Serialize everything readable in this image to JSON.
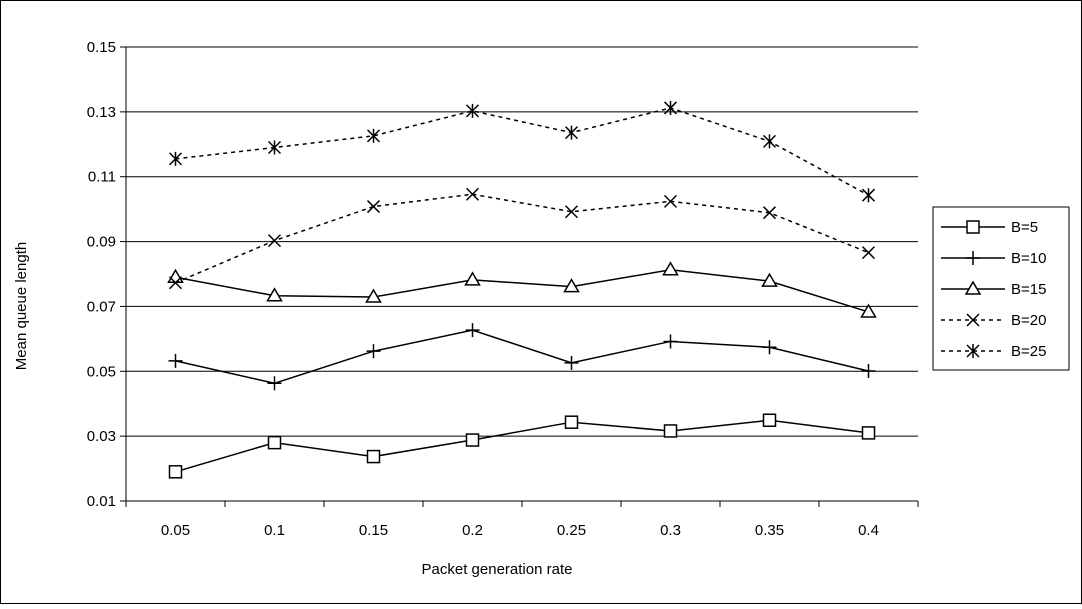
{
  "chart_data": {
    "type": "line",
    "title": "",
    "xlabel": "Packet generation rate",
    "ylabel": "Mean queue length",
    "categories": [
      "0.05",
      "0.1",
      "0.15",
      "0.2",
      "0.25",
      "0.3",
      "0.35",
      "0.4"
    ],
    "yticks": [
      "0.01",
      "0.03",
      "0.05",
      "0.07",
      "0.09",
      "0.11",
      "0.13",
      "0.15"
    ],
    "ylim": [
      0.01,
      0.15
    ],
    "grid": "horizontal",
    "legend_position": "right",
    "series": [
      {
        "name": "B=5",
        "marker": "square",
        "dash": "solid",
        "values": [
          0.019,
          0.028,
          0.0237,
          0.0288,
          0.0343,
          0.0316,
          0.0349,
          0.031
        ]
      },
      {
        "name": "B=10",
        "marker": "plus",
        "dash": "solid",
        "values": [
          0.0532,
          0.0463,
          0.0562,
          0.0627,
          0.0526,
          0.0592,
          0.0574,
          0.0501
        ]
      },
      {
        "name": "B=15",
        "marker": "triangle",
        "dash": "solid",
        "values": [
          0.079,
          0.0733,
          0.0729,
          0.0782,
          0.0761,
          0.0813,
          0.0778,
          0.0683
        ]
      },
      {
        "name": "B=20",
        "marker": "x",
        "dash": "dashed",
        "values": [
          0.0773,
          0.0903,
          0.1008,
          0.1046,
          0.0992,
          0.1024,
          0.0989,
          0.0866
        ]
      },
      {
        "name": "B=25",
        "marker": "star",
        "dash": "dashed",
        "values": [
          0.1155,
          0.119,
          0.1226,
          0.1303,
          0.1236,
          0.1312,
          0.1209,
          0.1043
        ]
      }
    ]
  }
}
